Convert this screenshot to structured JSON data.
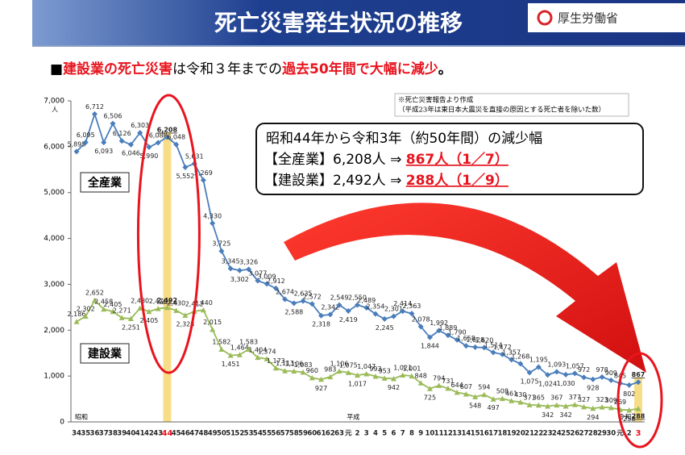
{
  "header": {
    "title": "死亡災害発生状況の推移",
    "ministry": "厚生労働省"
  },
  "subtitle": [
    "■",
    "建設業の死亡災害",
    "は令和３年までの",
    "過去50年間で大幅に減少",
    "。"
  ],
  "note": [
    "※死亡災害報告より作成",
    "（平成23年は東日本大震災を直接の原因とする死亡者を除いた数）"
  ],
  "callout": {
    "heading": "昭和44年から令和3年（約50年間）の減少幅",
    "lines": [
      {
        "text": "【全産業】6,208人 ⇒ ",
        "highlight": "867人（1／7）"
      },
      {
        "text": "【建設業】2,492人 ⇒ ",
        "highlight": "288人（1／9）"
      }
    ]
  },
  "chart_data": {
    "type": "line",
    "y_unit": "人",
    "x_group_labels": [
      "昭和",
      "平成",
      "令和"
    ],
    "categories": [
      "34",
      "35",
      "36",
      "37",
      "38",
      "39",
      "40",
      "41",
      "42",
      "43",
      "44",
      "45",
      "46",
      "47",
      "48",
      "49",
      "50",
      "51",
      "52",
      "53",
      "54",
      "55",
      "56",
      "57",
      "58",
      "59",
      "60",
      "61",
      "62",
      "63",
      "元",
      "2",
      "3",
      "4",
      "5",
      "6",
      "7",
      "8",
      "9",
      "10",
      "11",
      "12",
      "13",
      "14",
      "15",
      "16",
      "17",
      "18",
      "19",
      "20",
      "21",
      "22",
      "23",
      "24",
      "25",
      "26",
      "27",
      "28",
      "29",
      "30",
      "元",
      "2",
      "3"
    ],
    "ylim": [
      0,
      7000
    ],
    "yticks": [
      0,
      {
        "value": 1000,
        "label": "1,000"
      },
      {
        "value": 2000,
        "label": "2,000"
      },
      {
        "value": 3000,
        "label": "3,000"
      },
      {
        "value": 4000,
        "label": "4,000"
      },
      {
        "value": 5000,
        "label": "5,000"
      },
      {
        "value": 6000,
        "label": "6,000"
      },
      {
        "value": 7000,
        "label": "7,000"
      }
    ],
    "grid": false,
    "series": [
      {
        "name": "全産業",
        "color": "#4a7ebb",
        "values": [
          5895,
          6095,
          6712,
          6093,
          6506,
          6126,
          6046,
          6303,
          5990,
          6088,
          6208,
          6048,
          5552,
          5631,
          5269,
          4330,
          3725,
          3345,
          3302,
          3326,
          3077,
          3009,
          2912,
          2674,
          2588,
          2635,
          2572,
          2318,
          2342,
          2549,
          2419,
          2550,
          2489,
          2354,
          2245,
          2301,
          2414,
          2363,
          2078,
          1844,
          1992,
          1889,
          1790,
          1658,
          1628,
          1620,
          1514,
          1472,
          1357,
          1268,
          1075,
          1195,
          1024,
          1093,
          1030,
          1057,
          972,
          928,
          978,
          909,
          845,
          802,
          867
        ],
        "value_labels": [
          "5,895",
          "6,095",
          "6,712",
          "6,093",
          "6,506",
          "6,126",
          "6,046",
          "6,303",
          "5,990",
          "6,088",
          "6,208",
          "6,048",
          "5,552",
          "5,631",
          "5,269",
          "4,330",
          "3,725",
          "3,345",
          "3,302",
          "3,326",
          "3,077",
          "3,009",
          "2,912",
          "2,674",
          "2,588",
          "2,635",
          "2,572",
          "2,318",
          "2,342",
          "2,549",
          "2,419",
          "2,550",
          "2,489",
          "2,354",
          "2,245",
          "2,301",
          "2,414",
          "2,363",
          "2,078",
          "1,844",
          "1,992",
          "1,889",
          "1,790",
          "1,658",
          "1,628",
          "1,620",
          "1,514",
          "1,472",
          "1,357",
          "1,268",
          "1,075",
          "1,195",
          "1,024",
          "1,093",
          "1,030",
          "1,057",
          "972",
          "928",
          "978",
          "909",
          "845",
          "802",
          "867"
        ]
      },
      {
        "name": "建設業",
        "color": "#9bbb59",
        "values": [
          2186,
          2302,
          2652,
          2458,
          2405,
          2271,
          2251,
          2480,
          2405,
          2470,
          2492,
          2430,
          2323,
          2412,
          2440,
          2015,
          1582,
          1451,
          1464,
          1583,
          1404,
          1374,
          1173,
          1113,
          1106,
          1083,
          960,
          927,
          983,
          1106,
          1075,
          1017,
          1047,
          993,
          953,
          942,
          1021,
          1001,
          848,
          725,
          794,
          731,
          644,
          607,
          548,
          594,
          497,
          508,
          461,
          430,
          371,
          365,
          342,
          367,
          342,
          377,
          327,
          294,
          323,
          309,
          269,
          258,
          288
        ],
        "value_labels": [
          "2,186",
          "2,302",
          "2,652",
          "2,458",
          "2,405",
          "2,271",
          "2,251",
          "2,480",
          "2,405",
          "2,470",
          "2,492",
          "2,430",
          "2,323",
          "2,412",
          "2,440",
          "2,015",
          "1,582",
          "1,451",
          "1,464",
          "1,583",
          "1,404",
          "1,374",
          "1,173",
          "1,113",
          "1,106",
          "1,083",
          "960",
          "927",
          "983",
          "1,106",
          "1,075",
          "1,017",
          "1,047",
          "993",
          "953",
          "942",
          "1,021",
          "1,001",
          "848",
          "725",
          "794",
          "731",
          "644",
          "607",
          "548",
          "594",
          "497",
          "508",
          "461",
          "430",
          "371",
          "365",
          "342",
          "367",
          "342",
          "377",
          "327",
          "294",
          "323",
          "309",
          "269",
          "258",
          "288"
        ]
      }
    ]
  }
}
